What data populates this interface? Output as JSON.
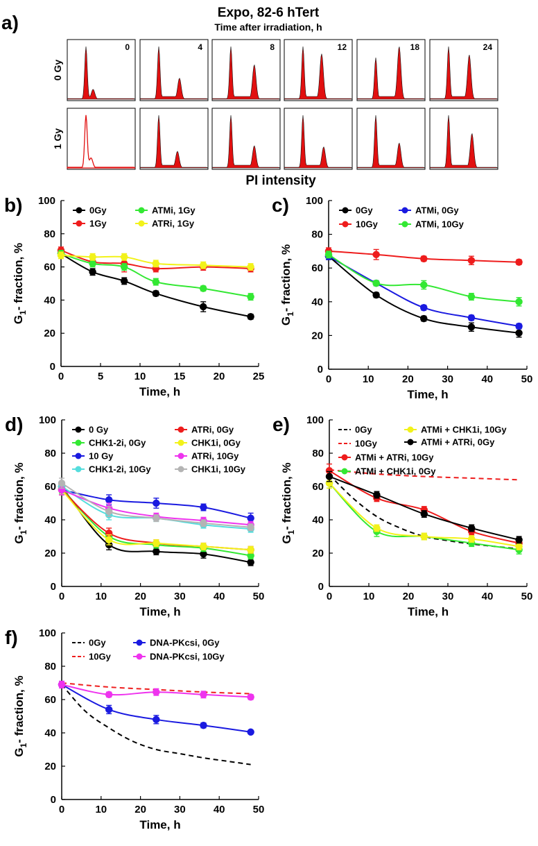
{
  "figure_title": "Expo, 82-6 hTert",
  "panel_a": {
    "label": "a)",
    "subtitle": "Time after irradiation, h",
    "xlabel": "PI intensity",
    "rows": [
      "0 Gy",
      "1 Gy"
    ],
    "times": [
      "0",
      "4",
      "8",
      "12",
      "18",
      "24"
    ]
  },
  "colors": {
    "black": "#000000",
    "red": "#ee1c1c",
    "green": "#33e833",
    "yellow": "#f2f21a",
    "blue": "#1a1ae0",
    "cyan": "#55dddd",
    "magenta": "#ee33ee",
    "gray": "#b4b4b4"
  },
  "chart_data": [
    {
      "id": "b",
      "label": "b)",
      "type": "line",
      "xlabel": "Time, h",
      "ylabel_main": "G",
      "ylabel_sub": "1",
      "ylabel_rest": "- fraction, %",
      "xlim": [
        0,
        25
      ],
      "ylim": [
        0,
        100
      ],
      "xticks": [
        "0",
        "5",
        "10",
        "15",
        "20",
        "25"
      ],
      "yticks": [
        "0",
        "20",
        "40",
        "60",
        "80",
        "100"
      ],
      "legend_columns": 2,
      "legend_rows": 2,
      "series": [
        {
          "name": "0Gy",
          "color": "black",
          "x": [
            0,
            4,
            8,
            12,
            18,
            24
          ],
          "y": [
            68,
            57,
            51.5,
            44,
            36,
            30
          ],
          "err": [
            2,
            2,
            2,
            1.5,
            3,
            1.5
          ]
        },
        {
          "name": "1Gy",
          "color": "red",
          "x": [
            0,
            4,
            8,
            12,
            18,
            24
          ],
          "y": [
            70,
            63,
            62,
            59,
            60,
            59
          ],
          "err": [
            2,
            2,
            5,
            2,
            2,
            2
          ]
        },
        {
          "name": "ATMi, 1Gy",
          "color": "green",
          "x": [
            0,
            4,
            8,
            12,
            18,
            24
          ],
          "y": [
            68,
            62,
            60,
            51,
            47,
            42
          ],
          "err": [
            2,
            2,
            2,
            2,
            1.5,
            2
          ]
        },
        {
          "name": "ATRi, 1Gy",
          "color": "yellow",
          "x": [
            0,
            4,
            8,
            12,
            18,
            24
          ],
          "y": [
            67,
            66,
            66,
            62,
            61,
            60
          ],
          "err": [
            2,
            2,
            2,
            2,
            2,
            2
          ]
        }
      ]
    },
    {
      "id": "c",
      "label": "c)",
      "type": "line",
      "xlabel": "Time, h",
      "ylabel_main": "G",
      "ylabel_sub": "1",
      "ylabel_rest": "- fraction, %",
      "xlim": [
        0,
        50
      ],
      "ylim": [
        0,
        100
      ],
      "xticks": [
        "0",
        "10",
        "20",
        "30",
        "40",
        "50"
      ],
      "yticks": [
        "0",
        "20",
        "40",
        "60",
        "80",
        "100"
      ],
      "legend_columns": 2,
      "legend_rows": 2,
      "series": [
        {
          "name": "0Gy",
          "color": "black",
          "x": [
            0,
            12,
            24,
            36,
            48
          ],
          "y": [
            67,
            44,
            30,
            25,
            21.5
          ],
          "err": [
            2,
            1.5,
            1.5,
            2.5,
            2.5
          ]
        },
        {
          "name": "10Gy",
          "color": "red",
          "x": [
            0,
            12,
            24,
            36,
            48
          ],
          "y": [
            70,
            68,
            65.5,
            64.5,
            63.5
          ],
          "err": [
            2,
            3,
            1.5,
            2.5,
            1.5
          ]
        },
        {
          "name": "ATMi, 0Gy",
          "color": "blue",
          "x": [
            0,
            12,
            24,
            36,
            48
          ],
          "y": [
            67,
            51,
            36.5,
            30.5,
            25.5
          ],
          "err": [
            2,
            1.5,
            1.5,
            1.5,
            1.5
          ]
        },
        {
          "name": "ATMi, 10Gy",
          "color": "green",
          "x": [
            0,
            12,
            24,
            36,
            48
          ],
          "y": [
            68,
            51,
            50,
            43,
            40
          ],
          "err": [
            2,
            1.5,
            2.5,
            2,
            2.5
          ]
        }
      ]
    },
    {
      "id": "d",
      "label": "d)",
      "type": "line",
      "xlabel": "Time, h",
      "ylabel_main": "G",
      "ylabel_sub": "1",
      "ylabel_rest": "- fraction, %",
      "xlim": [
        0,
        50
      ],
      "ylim": [
        0,
        100
      ],
      "xticks": [
        "0",
        "10",
        "20",
        "30",
        "40",
        "50"
      ],
      "yticks": [
        "0",
        "20",
        "40",
        "60",
        "80",
        "100"
      ],
      "legend_columns": 2,
      "legend_rows": 4,
      "series": [
        {
          "name": "0 Gy",
          "color": "black",
          "x": [
            0,
            12,
            24,
            36,
            48
          ],
          "y": [
            60,
            25,
            21,
            19.5,
            14.5
          ],
          "err": [
            3,
            3,
            2,
            2.5,
            2
          ]
        },
        {
          "name": "CHK1-2i, 0Gy",
          "color": "green",
          "x": [
            0,
            12,
            24,
            36,
            48
          ],
          "y": [
            59,
            30,
            25,
            23,
            18.5
          ],
          "err": [
            3,
            3,
            2,
            2,
            2
          ]
        },
        {
          "name": "10 Gy",
          "color": "blue",
          "x": [
            0,
            12,
            24,
            36,
            48
          ],
          "y": [
            58,
            52,
            50,
            47.5,
            41
          ],
          "err": [
            3,
            3,
            3,
            2,
            3
          ]
        },
        {
          "name": "CHK1-2i, 10Gy",
          "color": "cyan",
          "x": [
            0,
            12,
            24,
            36,
            48
          ],
          "y": [
            60,
            43,
            41,
            37,
            34.5
          ],
          "err": [
            3,
            3,
            2,
            2,
            2
          ]
        },
        {
          "name": "ATRi, 0Gy",
          "color": "red",
          "x": [
            0,
            12,
            24,
            36,
            48
          ],
          "y": [
            58,
            32,
            26,
            24,
            22
          ],
          "err": [
            3,
            3,
            2,
            2,
            2
          ]
        },
        {
          "name": "CHK1i, 0Gy",
          "color": "yellow",
          "x": [
            0,
            12,
            24,
            36,
            48
          ],
          "y": [
            58,
            28,
            26,
            24,
            22
          ],
          "err": [
            3,
            3,
            2,
            2,
            2
          ]
        },
        {
          "name": "ATRi, 10Gy",
          "color": "magenta",
          "x": [
            0,
            12,
            24,
            36,
            48
          ],
          "y": [
            58,
            47,
            42,
            39.5,
            37
          ],
          "err": [
            3,
            3,
            2,
            2,
            2
          ]
        },
        {
          "name": "CHK1i, 10Gy",
          "color": "gray",
          "x": [
            0,
            12,
            24,
            36,
            48
          ],
          "y": [
            62,
            45,
            41,
            38,
            35.5
          ],
          "err": [
            3,
            3,
            2,
            2,
            2
          ]
        }
      ]
    },
    {
      "id": "e",
      "label": "e)",
      "type": "line",
      "xlabel": "Time, h",
      "ylabel_main": "G",
      "ylabel_sub": "1",
      "ylabel_rest": "- fraction, %",
      "xlim": [
        0,
        50
      ],
      "ylim": [
        0,
        100
      ],
      "xticks": [
        "0",
        "10",
        "20",
        "30",
        "40",
        "50"
      ],
      "yticks": [
        "0",
        "20",
        "40",
        "60",
        "80",
        "100"
      ],
      "legend_columns": 2,
      "legend_rows": 4,
      "series": [
        {
          "name": "0Gy",
          "color": "black",
          "dashed": true,
          "x": [
            0,
            6,
            12,
            18,
            24,
            30,
            36,
            42,
            48
          ],
          "y": [
            67,
            53,
            42,
            35,
            30,
            27.5,
            25.5,
            24,
            22.5
          ]
        },
        {
          "name": "10Gy",
          "color": "red",
          "dashed": true,
          "x": [
            0,
            12,
            24,
            36,
            48
          ],
          "y": [
            70,
            67.5,
            66,
            65,
            64
          ]
        },
        {
          "name": "ATMi + ATRi, 10Gy",
          "color": "red",
          "x": [
            0,
            12,
            24,
            36,
            48
          ],
          "y": [
            69.5,
            53,
            46,
            33,
            26
          ],
          "err": [
            4,
            2,
            2,
            2,
            2
          ]
        },
        {
          "name": "ATMi + CHK1i, 0Gy",
          "color": "green",
          "x": [
            0,
            12,
            24,
            36,
            48
          ],
          "y": [
            62,
            33,
            30,
            26,
            22
          ],
          "err": [
            3,
            3,
            2,
            2,
            2.5
          ]
        },
        {
          "name": "ATMi + CHK1i, 10Gy",
          "color": "yellow",
          "x": [
            0,
            12,
            24,
            36,
            48
          ],
          "y": [
            62,
            35,
            30,
            28.5,
            24
          ],
          "err": [
            3,
            2,
            2,
            2,
            2
          ]
        },
        {
          "name": "ATMi + ATRi, 0Gy",
          "color": "black",
          "x": [
            0,
            12,
            24,
            36,
            48
          ],
          "y": [
            66,
            55,
            43.5,
            35,
            28
          ],
          "err": [
            3,
            2,
            2,
            2,
            2
          ]
        }
      ]
    },
    {
      "id": "f",
      "label": "f)",
      "type": "line",
      "xlabel": "Time, h",
      "ylabel_main": "G",
      "ylabel_sub": "1",
      "ylabel_rest": "- fraction, %",
      "xlim": [
        0,
        50
      ],
      "ylim": [
        0,
        100
      ],
      "xticks": [
        "0",
        "10",
        "20",
        "30",
        "40",
        "50"
      ],
      "yticks": [
        "0",
        "20",
        "40",
        "60",
        "80",
        "100"
      ],
      "legend_columns": 2,
      "legend_rows": 2,
      "series": [
        {
          "name": "0Gy",
          "color": "black",
          "dashed": true,
          "x": [
            0,
            6,
            12,
            18,
            24,
            30,
            36,
            42,
            48
          ],
          "y": [
            69,
            53,
            43,
            35,
            30,
            27.5,
            25,
            23,
            21
          ]
        },
        {
          "name": "10Gy",
          "color": "red",
          "dashed": true,
          "x": [
            0,
            12,
            24,
            36,
            48
          ],
          "y": [
            70,
            67.5,
            66,
            64.5,
            63.5
          ]
        },
        {
          "name": "DNA-PKcsi, 0Gy",
          "color": "blue",
          "x": [
            0,
            12,
            24,
            36,
            48
          ],
          "y": [
            69,
            54,
            48,
            44.5,
            40.5
          ],
          "err": [
            2,
            2.5,
            2.5,
            1.5,
            1
          ]
        },
        {
          "name": "DNA-PKcsi, 10Gy",
          "color": "magenta",
          "x": [
            0,
            12,
            24,
            36,
            48
          ],
          "y": [
            69,
            63,
            64.5,
            63,
            61.5
          ],
          "err": [
            2,
            1.5,
            2,
            2,
            1.5
          ]
        }
      ]
    }
  ]
}
